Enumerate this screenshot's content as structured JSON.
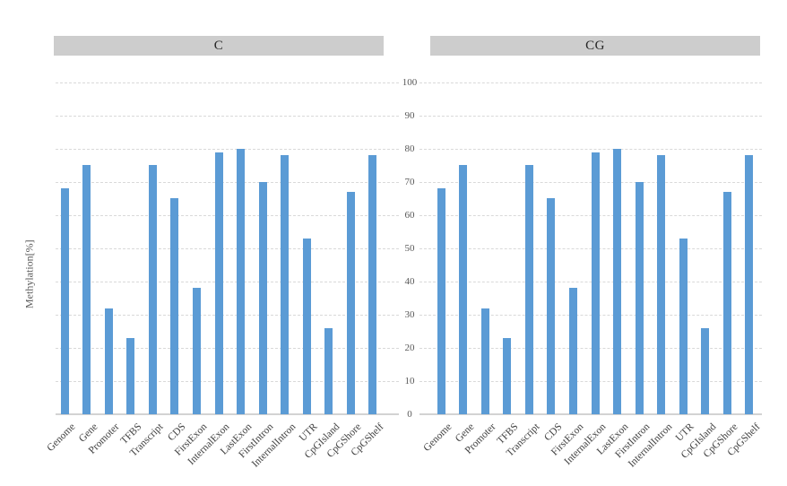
{
  "chart_data": {
    "type": "bar",
    "title": "",
    "xlabel": "",
    "ylabel": "Methylation[%]",
    "ylim": [
      0,
      100
    ],
    "ytick_step": 10,
    "grid": "horizontal dashed gridlines at every 10, solid baseline at 0",
    "legend": "none",
    "layout": "two side-by-side facet panels (C left, CG right) sharing one central y-axis with tick labels between the panels; x labels rotated 45 degrees",
    "categories": [
      "Genome",
      "Gene",
      "Promoter",
      "TFBS",
      "Transcript",
      "CDS",
      "FirstExon",
      "InternalExon",
      "LastExon",
      "FirstIntron",
      "InternalIntron",
      "UTR",
      "CpGIsland",
      "CpGShore",
      "CpGShelf"
    ],
    "series": [
      {
        "name": "C",
        "values": [
          68,
          75,
          32,
          23,
          75,
          65,
          38,
          79,
          80,
          70,
          78,
          53,
          26,
          67,
          78
        ]
      },
      {
        "name": "CG",
        "values": [
          68,
          75,
          32,
          23,
          75,
          65,
          38,
          79,
          80,
          70,
          78,
          53,
          26,
          67,
          78
        ]
      }
    ]
  },
  "axis": {
    "y_title": "Methylation[%]",
    "y_ticks": [
      "0",
      "10",
      "20",
      "30",
      "40",
      "50",
      "60",
      "70",
      "80",
      "90",
      "100"
    ]
  },
  "panels": [
    {
      "title": "C"
    },
    {
      "title": "CG"
    }
  ],
  "colors": {
    "bar": "#5b9bd5",
    "strip_background": "#cdcdcd",
    "strip_text": "#262626",
    "gridline": "#d9d9d9",
    "axis_line": "#d3d3d3",
    "tick_text": "#595959",
    "category_text": "#404040",
    "background": "#ffffff"
  }
}
